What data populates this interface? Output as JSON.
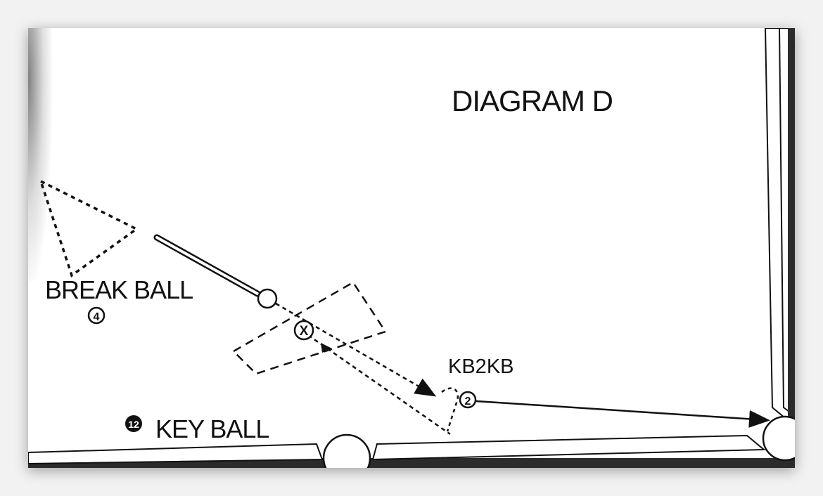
{
  "diagram": {
    "title": "DIAGRAM D",
    "labels": {
      "break_ball": "BREAK BALL",
      "kb2kb": "KB2KB",
      "key_ball": "KEY BALL"
    },
    "balls": {
      "break_ball_number": "4",
      "key_ball_number": "12",
      "object_ball_number": "2",
      "ghost_ball_mark": "X"
    },
    "colors": {
      "ink": "#111111",
      "cushion": "#2b2b2b",
      "felt": "#ffffff"
    }
  }
}
